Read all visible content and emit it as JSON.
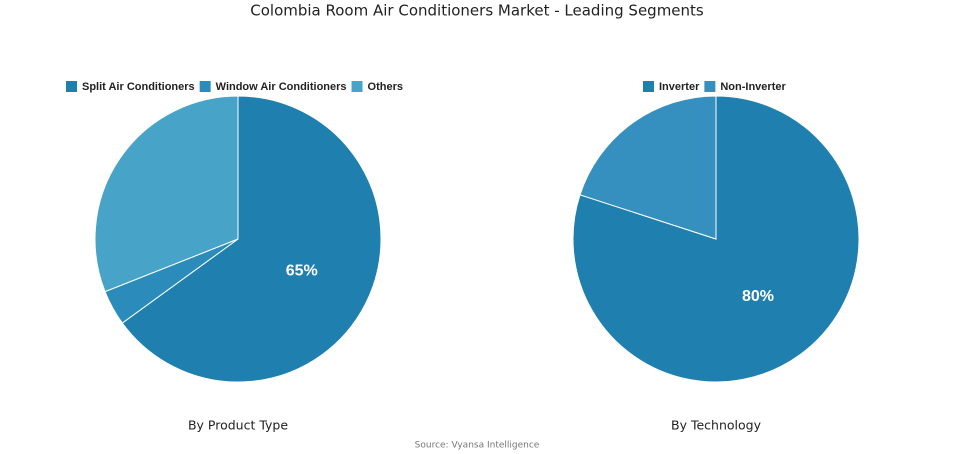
{
  "title": "Colombia Room Air Conditioners Market - Leading Segments",
  "source": "Source: Vyansa Intelligence",
  "chart_data": [
    {
      "type": "pie",
      "title": "By Product Type",
      "categories": [
        "Split Air Conditioners",
        "Window Air Conditioners",
        "Others"
      ],
      "values": [
        65,
        4,
        31
      ],
      "value_labels": [
        "65%",
        null,
        null
      ],
      "colors": [
        "#1f7fae",
        "#2b8cbb",
        "#47a3c8"
      ]
    },
    {
      "type": "pie",
      "title": "By Technology",
      "categories": [
        "Inverter",
        "Non-Inverter"
      ],
      "values": [
        80,
        20
      ],
      "value_labels": [
        "80%",
        null
      ],
      "colors": [
        "#1f7fae",
        "#3590bf"
      ]
    }
  ]
}
